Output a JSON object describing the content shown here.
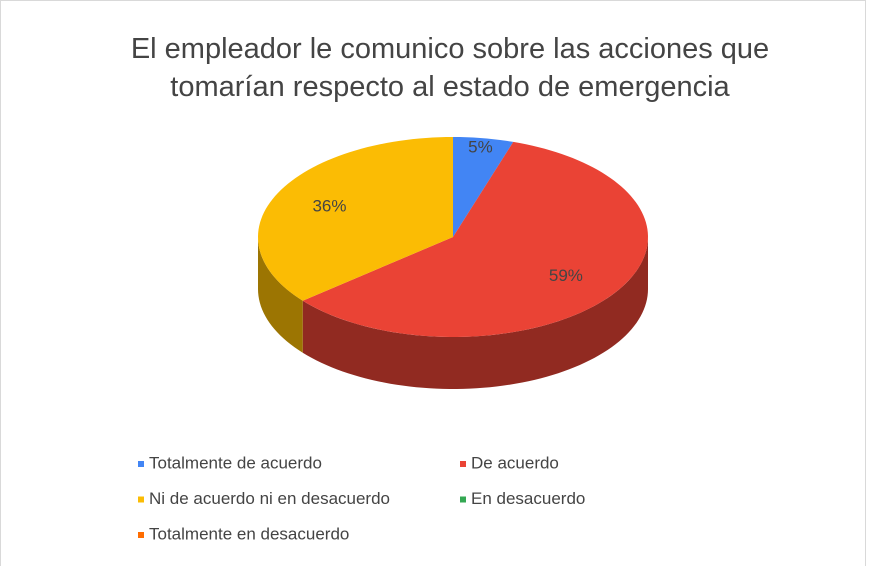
{
  "chart_data": {
    "type": "pie",
    "title": "El empleador le comunico sobre las acciones que tomarían respecto al estado de emergencia",
    "categories": [
      "Totalmente de acuerdo",
      "De acuerdo",
      "Ni de acuerdo ni en desacuerdo",
      "En desacuerdo",
      "Totalmente en desacuerdo"
    ],
    "values": [
      5,
      59,
      36,
      0,
      0
    ],
    "value_labels": [
      "5%",
      "59%",
      "36%",
      null,
      null
    ],
    "colors": [
      "#4285f4",
      "#ea4335",
      "#fbbc04",
      "#34a853",
      "#ff6d01"
    ],
    "legend": "bottom"
  }
}
